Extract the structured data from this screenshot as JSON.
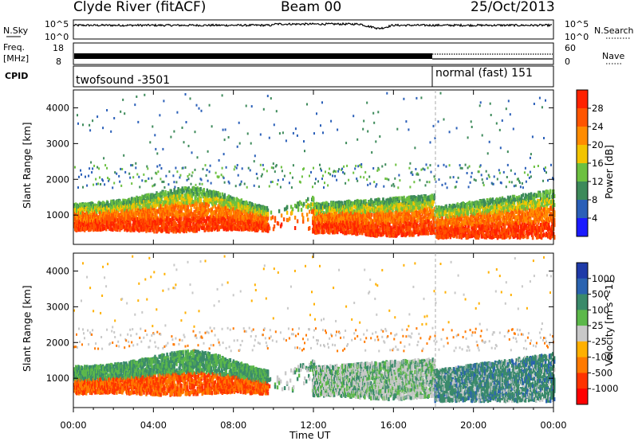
{
  "header": {
    "station": "Clyde River (fitACF)",
    "beam": "Beam 00",
    "date": "25/Oct/2013"
  },
  "noise_panel": {
    "left_label": "N.Sky",
    "left_tick_top": "10^5",
    "left_tick_bottom": "10^0",
    "right_tick_top": "10^5",
    "right_tick_bottom": "10^0",
    "right_label": "N.Search"
  },
  "freq_panel": {
    "left_label_line1": "Freq.",
    "left_label_line2": "[MHz]",
    "left_tick_top": "18",
    "left_tick_bottom": "8",
    "right_tick_top": "60",
    "right_tick_bottom": "0",
    "right_label": "Nave"
  },
  "cpid_panel": {
    "label": "CPID",
    "mode1": "twofsound -3501",
    "mode2": "normal (fast) 151"
  },
  "chart_data": [
    {
      "type": "heatmap",
      "parameter": "Power",
      "ylabel": "Slant Range [km]",
      "ylim": [
        180,
        4500
      ],
      "yticks": [
        "1000",
        "2000",
        "3000",
        "4000"
      ],
      "xlim": [
        0,
        24
      ],
      "colorbar": {
        "label": "Power [dB]",
        "ticks": [
          "4",
          "8",
          "12",
          "16",
          "20",
          "24",
          "28"
        ],
        "colors": [
          "#1a1aff",
          "#2a5fb8",
          "#3d8a5a",
          "#6cc040",
          "#f2c400",
          "#ff8c00",
          "#ff5500",
          "#ff2200"
        ]
      }
    },
    {
      "type": "heatmap",
      "parameter": "Velocity",
      "ylabel": "Slant Range [km]",
      "ylim": [
        180,
        4500
      ],
      "yticks": [
        "1000",
        "2000",
        "3000",
        "4000"
      ],
      "xlim": [
        0,
        24
      ],
      "colorbar": {
        "label": "Velocity [m s^-1]",
        "ticks": [
          "1000",
          "500",
          "100",
          "25",
          "-25",
          "-100",
          "-500",
          "-1000"
        ],
        "colors": [
          "#1e3aa8",
          "#2a63b0",
          "#3a8a6a",
          "#5cb84a",
          "#c8c8c8",
          "#ffb000",
          "#ff7a00",
          "#ff3300",
          "#ff0000"
        ]
      }
    }
  ],
  "time_axis": {
    "label": "Time UT",
    "ticks": [
      "00:00",
      "04:00",
      "08:00",
      "12:00",
      "16:00",
      "20:00",
      "00:00"
    ],
    "mode_change_hour": 18.1
  }
}
